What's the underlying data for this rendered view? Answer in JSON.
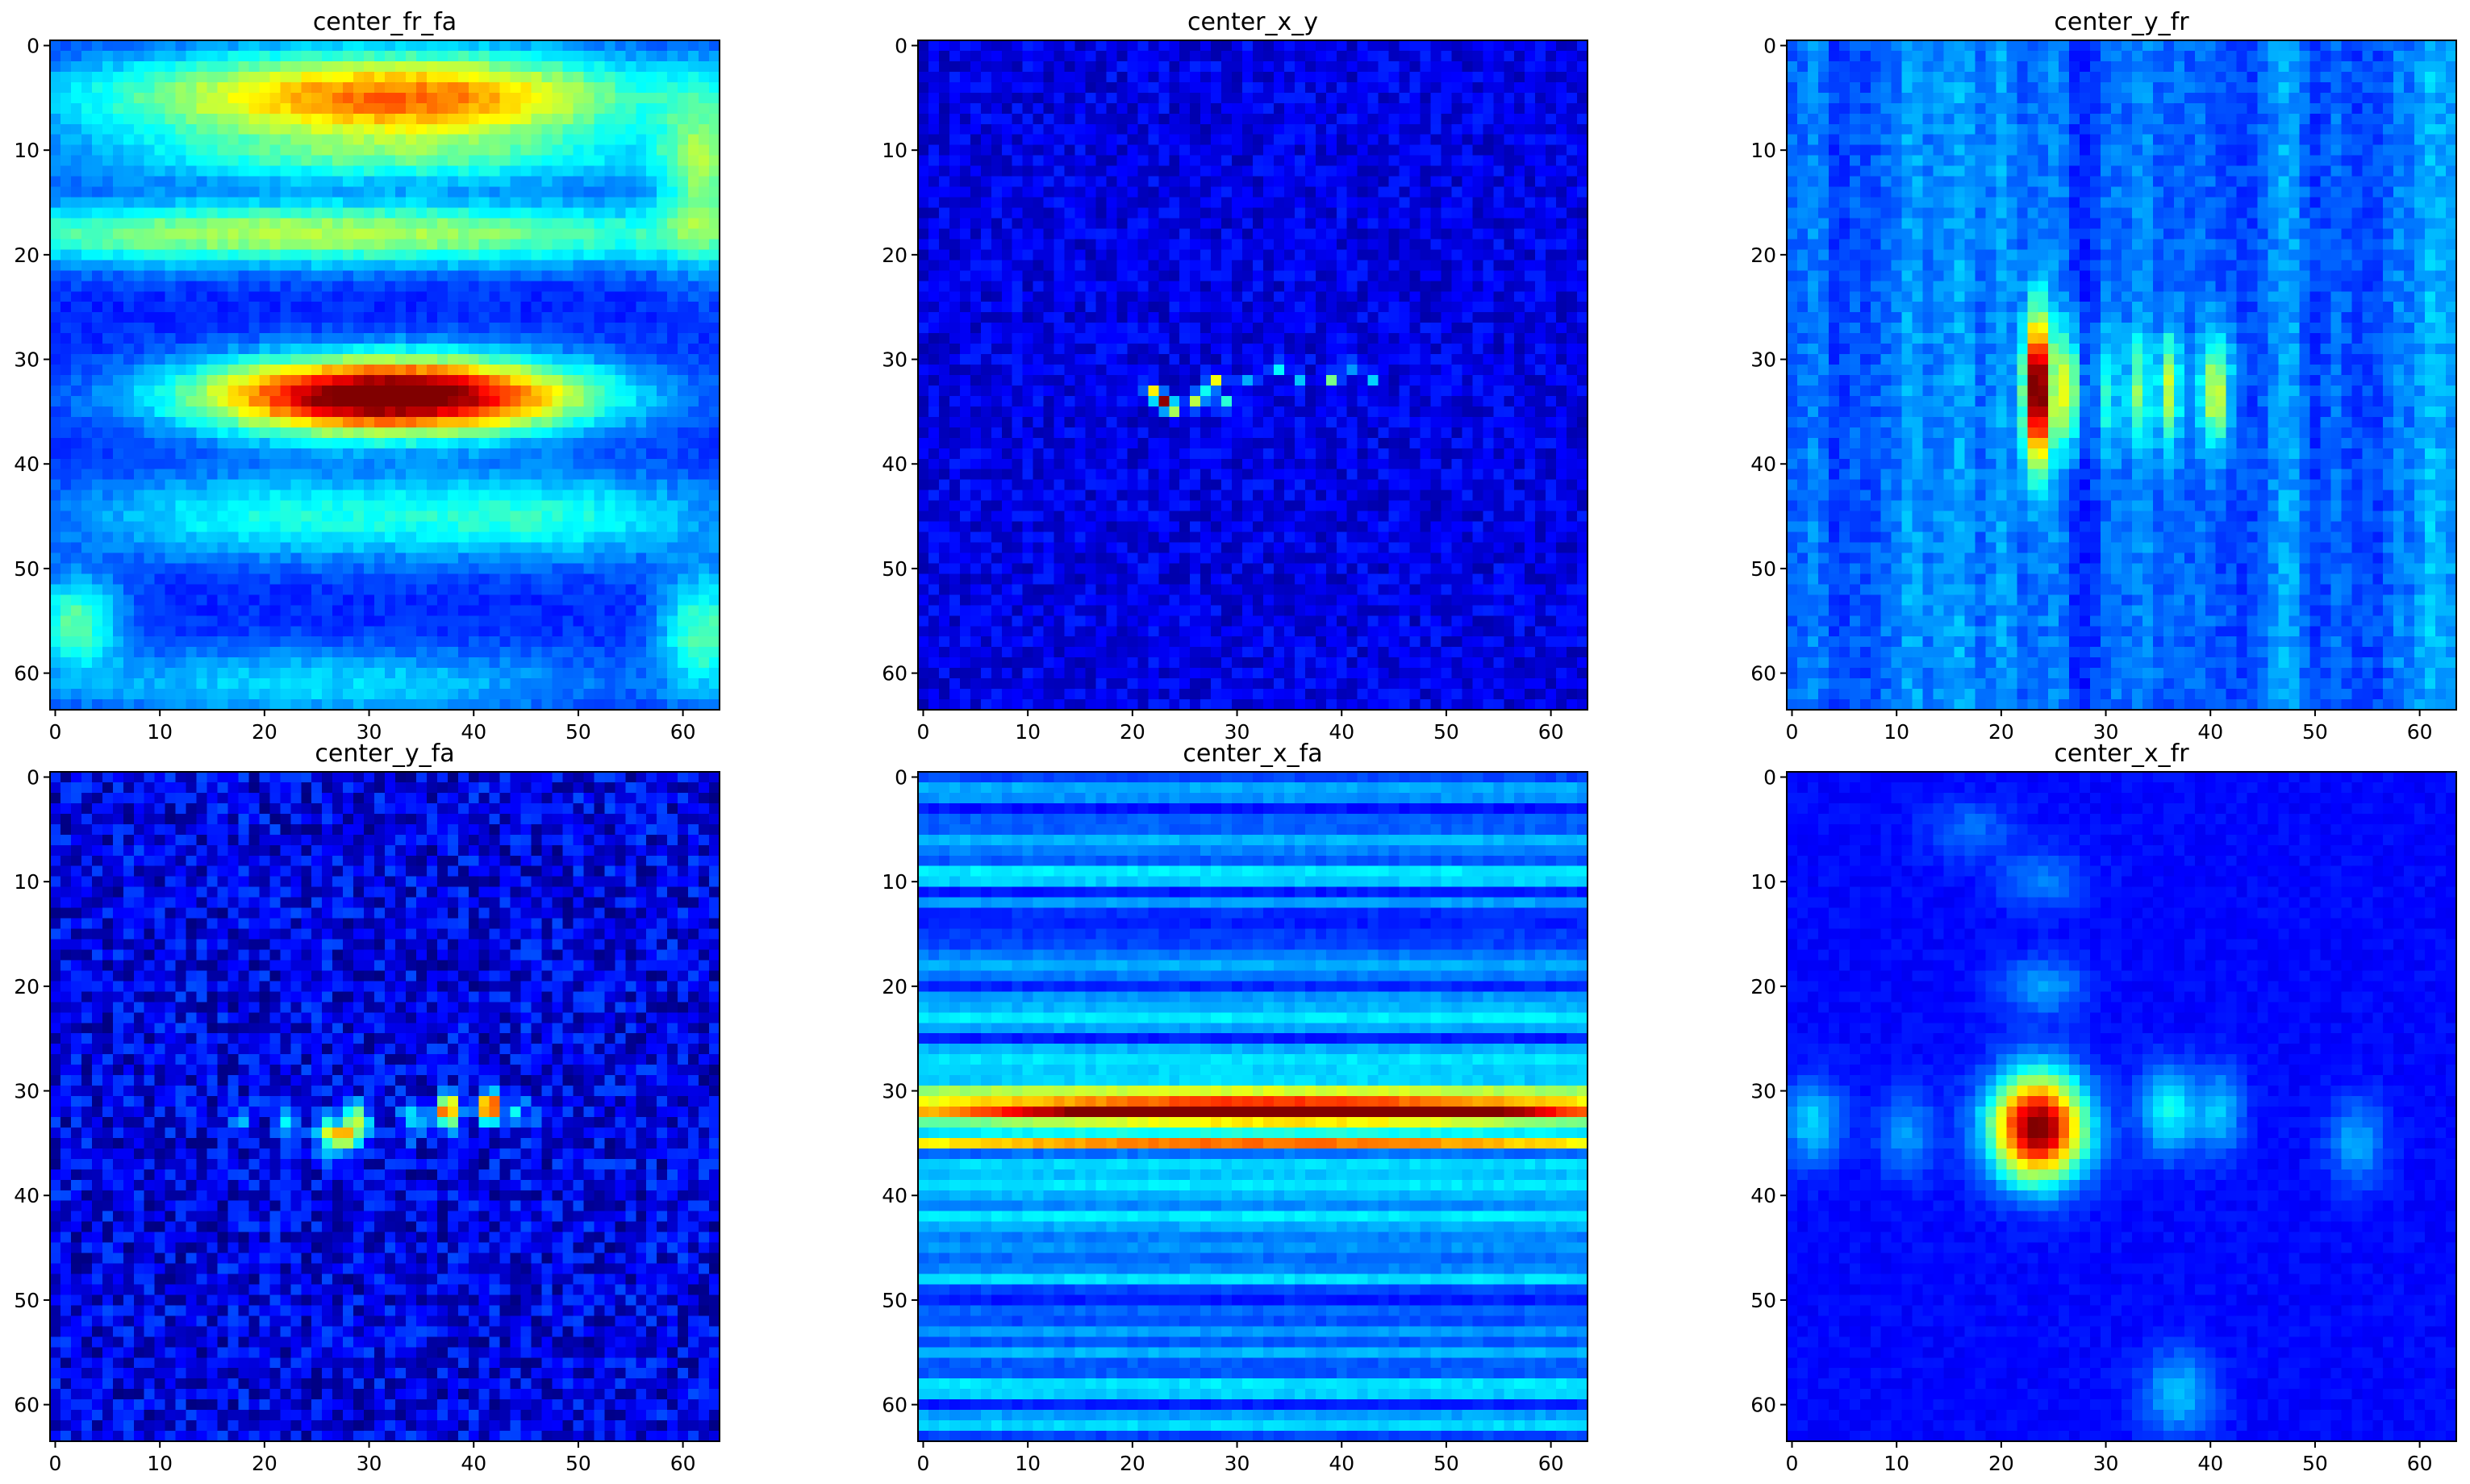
{
  "chart_data": [
    {
      "type": "heatmap",
      "title": "center_fr_fa",
      "xlabel": "",
      "ylabel": "",
      "grid_size": 64,
      "x_range": [
        -0.5,
        63.5
      ],
      "y_range": [
        -0.5,
        63.5
      ],
      "y_direction": "top-to-bottom",
      "x_ticks": [
        0,
        10,
        20,
        30,
        40,
        50,
        60
      ],
      "y_ticks": [
        0,
        10,
        20,
        30,
        40,
        50,
        60
      ],
      "colormap": "jet",
      "blobs": [
        {
          "x": 32,
          "y": 33.5,
          "sx": 13,
          "sy": 2.6,
          "amp": 0.95
        },
        {
          "x": 24,
          "y": 5,
          "sx": 18,
          "sy": 3.2,
          "amp": 0.4
        },
        {
          "x": 40,
          "y": 5,
          "sx": 14,
          "sy": 3.2,
          "amp": 0.3
        },
        {
          "x": 12,
          "y": 18,
          "sx": 20,
          "sy": 2.2,
          "amp": 0.3
        },
        {
          "x": 45,
          "y": 18,
          "sx": 20,
          "sy": 2.2,
          "amp": 0.25
        },
        {
          "x": 32,
          "y": 11,
          "sx": 22,
          "sy": 1.8,
          "amp": 0.2
        },
        {
          "x": 62,
          "y": 12,
          "sx": 3,
          "sy": 6,
          "amp": 0.3
        },
        {
          "x": 2,
          "y": 55,
          "sx": 3,
          "sy": 3,
          "amp": 0.3
        },
        {
          "x": 62,
          "y": 56,
          "sx": 3,
          "sy": 4,
          "amp": 0.3
        },
        {
          "x": 20,
          "y": 45,
          "sx": 14,
          "sy": 3,
          "amp": 0.22
        },
        {
          "x": 48,
          "y": 45,
          "sx": 12,
          "sy": 3,
          "amp": 0.22
        },
        {
          "x": 25,
          "y": 61,
          "sx": 20,
          "sy": 2.5,
          "amp": 0.18
        }
      ],
      "stripes": [],
      "pixel_noise": 0.03,
      "background": 0.16
    },
    {
      "type": "heatmap",
      "title": "center_x_y",
      "xlabel": "",
      "ylabel": "",
      "grid_size": 64,
      "x_range": [
        -0.5,
        63.5
      ],
      "y_range": [
        -0.5,
        63.5
      ],
      "y_direction": "top-to-bottom",
      "x_ticks": [
        0,
        10,
        20,
        30,
        40,
        50,
        60
      ],
      "y_ticks": [
        0,
        10,
        20,
        30,
        40,
        50,
        60
      ],
      "colormap": "jet",
      "blobs": [
        {
          "x": 23,
          "y": 34,
          "sx": 0.55,
          "sy": 0.45,
          "amp": 0.9
        },
        {
          "x": 22,
          "y": 33,
          "sx": 0.5,
          "sy": 0.5,
          "amp": 0.5
        },
        {
          "x": 24,
          "y": 35,
          "sx": 0.5,
          "sy": 0.5,
          "amp": 0.4
        },
        {
          "x": 26,
          "y": 34,
          "sx": 0.5,
          "sy": 0.5,
          "amp": 0.45
        },
        {
          "x": 28,
          "y": 32,
          "sx": 0.5,
          "sy": 0.5,
          "amp": 0.45
        },
        {
          "x": 27,
          "y": 33,
          "sx": 0.5,
          "sy": 0.5,
          "amp": 0.3
        },
        {
          "x": 29,
          "y": 34,
          "sx": 0.5,
          "sy": 0.5,
          "amp": 0.35
        },
        {
          "x": 39,
          "y": 32,
          "sx": 0.5,
          "sy": 0.5,
          "amp": 0.38
        },
        {
          "x": 34,
          "y": 31,
          "sx": 0.5,
          "sy": 0.5,
          "amp": 0.22
        },
        {
          "x": 41,
          "y": 31,
          "sx": 0.5,
          "sy": 0.5,
          "amp": 0.22
        },
        {
          "x": 43,
          "y": 32,
          "sx": 0.5,
          "sy": 0.5,
          "amp": 0.2
        },
        {
          "x": 31,
          "y": 32,
          "sx": 0.5,
          "sy": 0.5,
          "amp": 0.18
        },
        {
          "x": 36,
          "y": 32,
          "sx": 0.5,
          "sy": 0.5,
          "amp": 0.2
        }
      ],
      "stripes": [],
      "pixel_noise": 0.06,
      "background": 0.1
    },
    {
      "type": "heatmap",
      "title": "center_y_fr",
      "xlabel": "",
      "ylabel": "",
      "grid_size": 64,
      "x_range": [
        -0.5,
        63.5
      ],
      "y_range": [
        -0.5,
        63.5
      ],
      "y_direction": "top-to-bottom",
      "x_ticks": [
        0,
        10,
        20,
        30,
        40,
        50,
        60
      ],
      "y_ticks": [
        0,
        10,
        20,
        30,
        40,
        50,
        60
      ],
      "colormap": "jet",
      "blobs": [
        {
          "x": 23.5,
          "y": 33,
          "sx": 0.9,
          "sy": 5,
          "amp": 0.9
        },
        {
          "x": 26.5,
          "y": 33,
          "sx": 0.8,
          "sy": 4,
          "amp": 0.4
        },
        {
          "x": 36,
          "y": 33,
          "sx": 0.7,
          "sy": 4,
          "amp": 0.35
        },
        {
          "x": 40.5,
          "y": 33,
          "sx": 1,
          "sy": 4,
          "amp": 0.38
        },
        {
          "x": 33,
          "y": 33,
          "sx": 0.7,
          "sy": 4,
          "amp": 0.25
        },
        {
          "x": 30,
          "y": 33,
          "sx": 0.7,
          "sy": 4,
          "amp": 0.2
        }
      ],
      "stripes": [
        {
          "axis": "columns",
          "count": 12,
          "amp": 0.22
        }
      ],
      "pixel_noise": 0.04,
      "background": 0.12
    },
    {
      "type": "heatmap",
      "title": "center_y_fa",
      "xlabel": "",
      "ylabel": "",
      "grid_size": 64,
      "x_range": [
        -0.5,
        63.5
      ],
      "y_range": [
        -0.5,
        63.5
      ],
      "y_direction": "top-to-bottom",
      "x_ticks": [
        0,
        10,
        20,
        30,
        40,
        50,
        60
      ],
      "y_ticks": [
        0,
        10,
        20,
        30,
        40,
        50,
        60
      ],
      "colormap": "jet",
      "blobs": [
        {
          "x": 41.5,
          "y": 31.5,
          "sx": 0.7,
          "sy": 1,
          "amp": 0.9
        },
        {
          "x": 37.5,
          "y": 32,
          "sx": 0.7,
          "sy": 1,
          "amp": 0.85
        },
        {
          "x": 27,
          "y": 34.5,
          "sx": 1.4,
          "sy": 1.3,
          "amp": 0.55
        },
        {
          "x": 29,
          "y": 33,
          "sx": 0.8,
          "sy": 1.2,
          "amp": 0.4
        },
        {
          "x": 22,
          "y": 33,
          "sx": 0.7,
          "sy": 1,
          "amp": 0.3
        },
        {
          "x": 34,
          "y": 33,
          "sx": 0.7,
          "sy": 1,
          "amp": 0.3
        },
        {
          "x": 44,
          "y": 32,
          "sx": 0.7,
          "sy": 1,
          "amp": 0.25
        },
        {
          "x": 46.5,
          "y": 32,
          "sx": 0.7,
          "sy": 1,
          "amp": 0.15
        },
        {
          "x": 18,
          "y": 33,
          "sx": 0.7,
          "sy": 1,
          "amp": 0.15
        }
      ],
      "stripes": [],
      "pixel_noise": 0.1,
      "background": 0.1
    },
    {
      "type": "heatmap",
      "title": "center_x_fa",
      "xlabel": "",
      "ylabel": "",
      "grid_size": 64,
      "x_range": [
        -0.5,
        63.5
      ],
      "y_range": [
        -0.5,
        63.5
      ],
      "y_direction": "top-to-bottom",
      "x_ticks": [
        0,
        10,
        20,
        30,
        40,
        50,
        60
      ],
      "y_ticks": [
        0,
        10,
        20,
        30,
        40,
        50,
        60
      ],
      "colormap": "jet",
      "blobs": [
        {
          "x": 35,
          "y": 32,
          "sx": 17,
          "sy": 0.55,
          "amp": 0.72
        },
        {
          "x": 32,
          "y": 31.5,
          "sx": 45,
          "sy": 1.6,
          "amp": 0.42
        },
        {
          "x": 32,
          "y": 35,
          "sx": 40,
          "sy": 0.5,
          "amp": 0.5
        }
      ],
      "stripes": [
        {
          "axis": "rows",
          "count": 64,
          "amp": 0.22
        }
      ],
      "pixel_noise": 0.02,
      "background": 0.14
    },
    {
      "type": "heatmap",
      "title": "center_x_fr",
      "xlabel": "",
      "ylabel": "",
      "grid_size": 64,
      "x_range": [
        -0.5,
        63.5
      ],
      "y_range": [
        -0.5,
        63.5
      ],
      "y_direction": "top-to-bottom",
      "x_ticks": [
        0,
        10,
        20,
        30,
        40,
        50,
        60
      ],
      "y_ticks": [
        0,
        10,
        20,
        30,
        40,
        50,
        60
      ],
      "colormap": "jet",
      "blobs": [
        {
          "x": 23.5,
          "y": 33.5,
          "sx": 3.2,
          "sy": 3.6,
          "amp": 0.9
        },
        {
          "x": 36,
          "y": 32,
          "sx": 2,
          "sy": 3,
          "amp": 0.25
        },
        {
          "x": 41,
          "y": 32,
          "sx": 1.6,
          "sy": 3,
          "amp": 0.18
        },
        {
          "x": 2,
          "y": 33,
          "sx": 2,
          "sy": 3,
          "amp": 0.2
        },
        {
          "x": 11,
          "y": 34,
          "sx": 2,
          "sy": 3,
          "amp": 0.14
        },
        {
          "x": 54,
          "y": 35,
          "sx": 2,
          "sy": 3,
          "amp": 0.16
        },
        {
          "x": 24,
          "y": 20,
          "sx": 3,
          "sy": 2,
          "amp": 0.15
        },
        {
          "x": 24,
          "y": 10,
          "sx": 3,
          "sy": 2,
          "amp": 0.12
        },
        {
          "x": 37,
          "y": 59,
          "sx": 2.5,
          "sy": 3,
          "amp": 0.18
        },
        {
          "x": 17,
          "y": 5,
          "sx": 3,
          "sy": 2,
          "amp": 0.1
        }
      ],
      "stripes": [],
      "pixel_noise": 0.02,
      "background": 0.13
    }
  ]
}
